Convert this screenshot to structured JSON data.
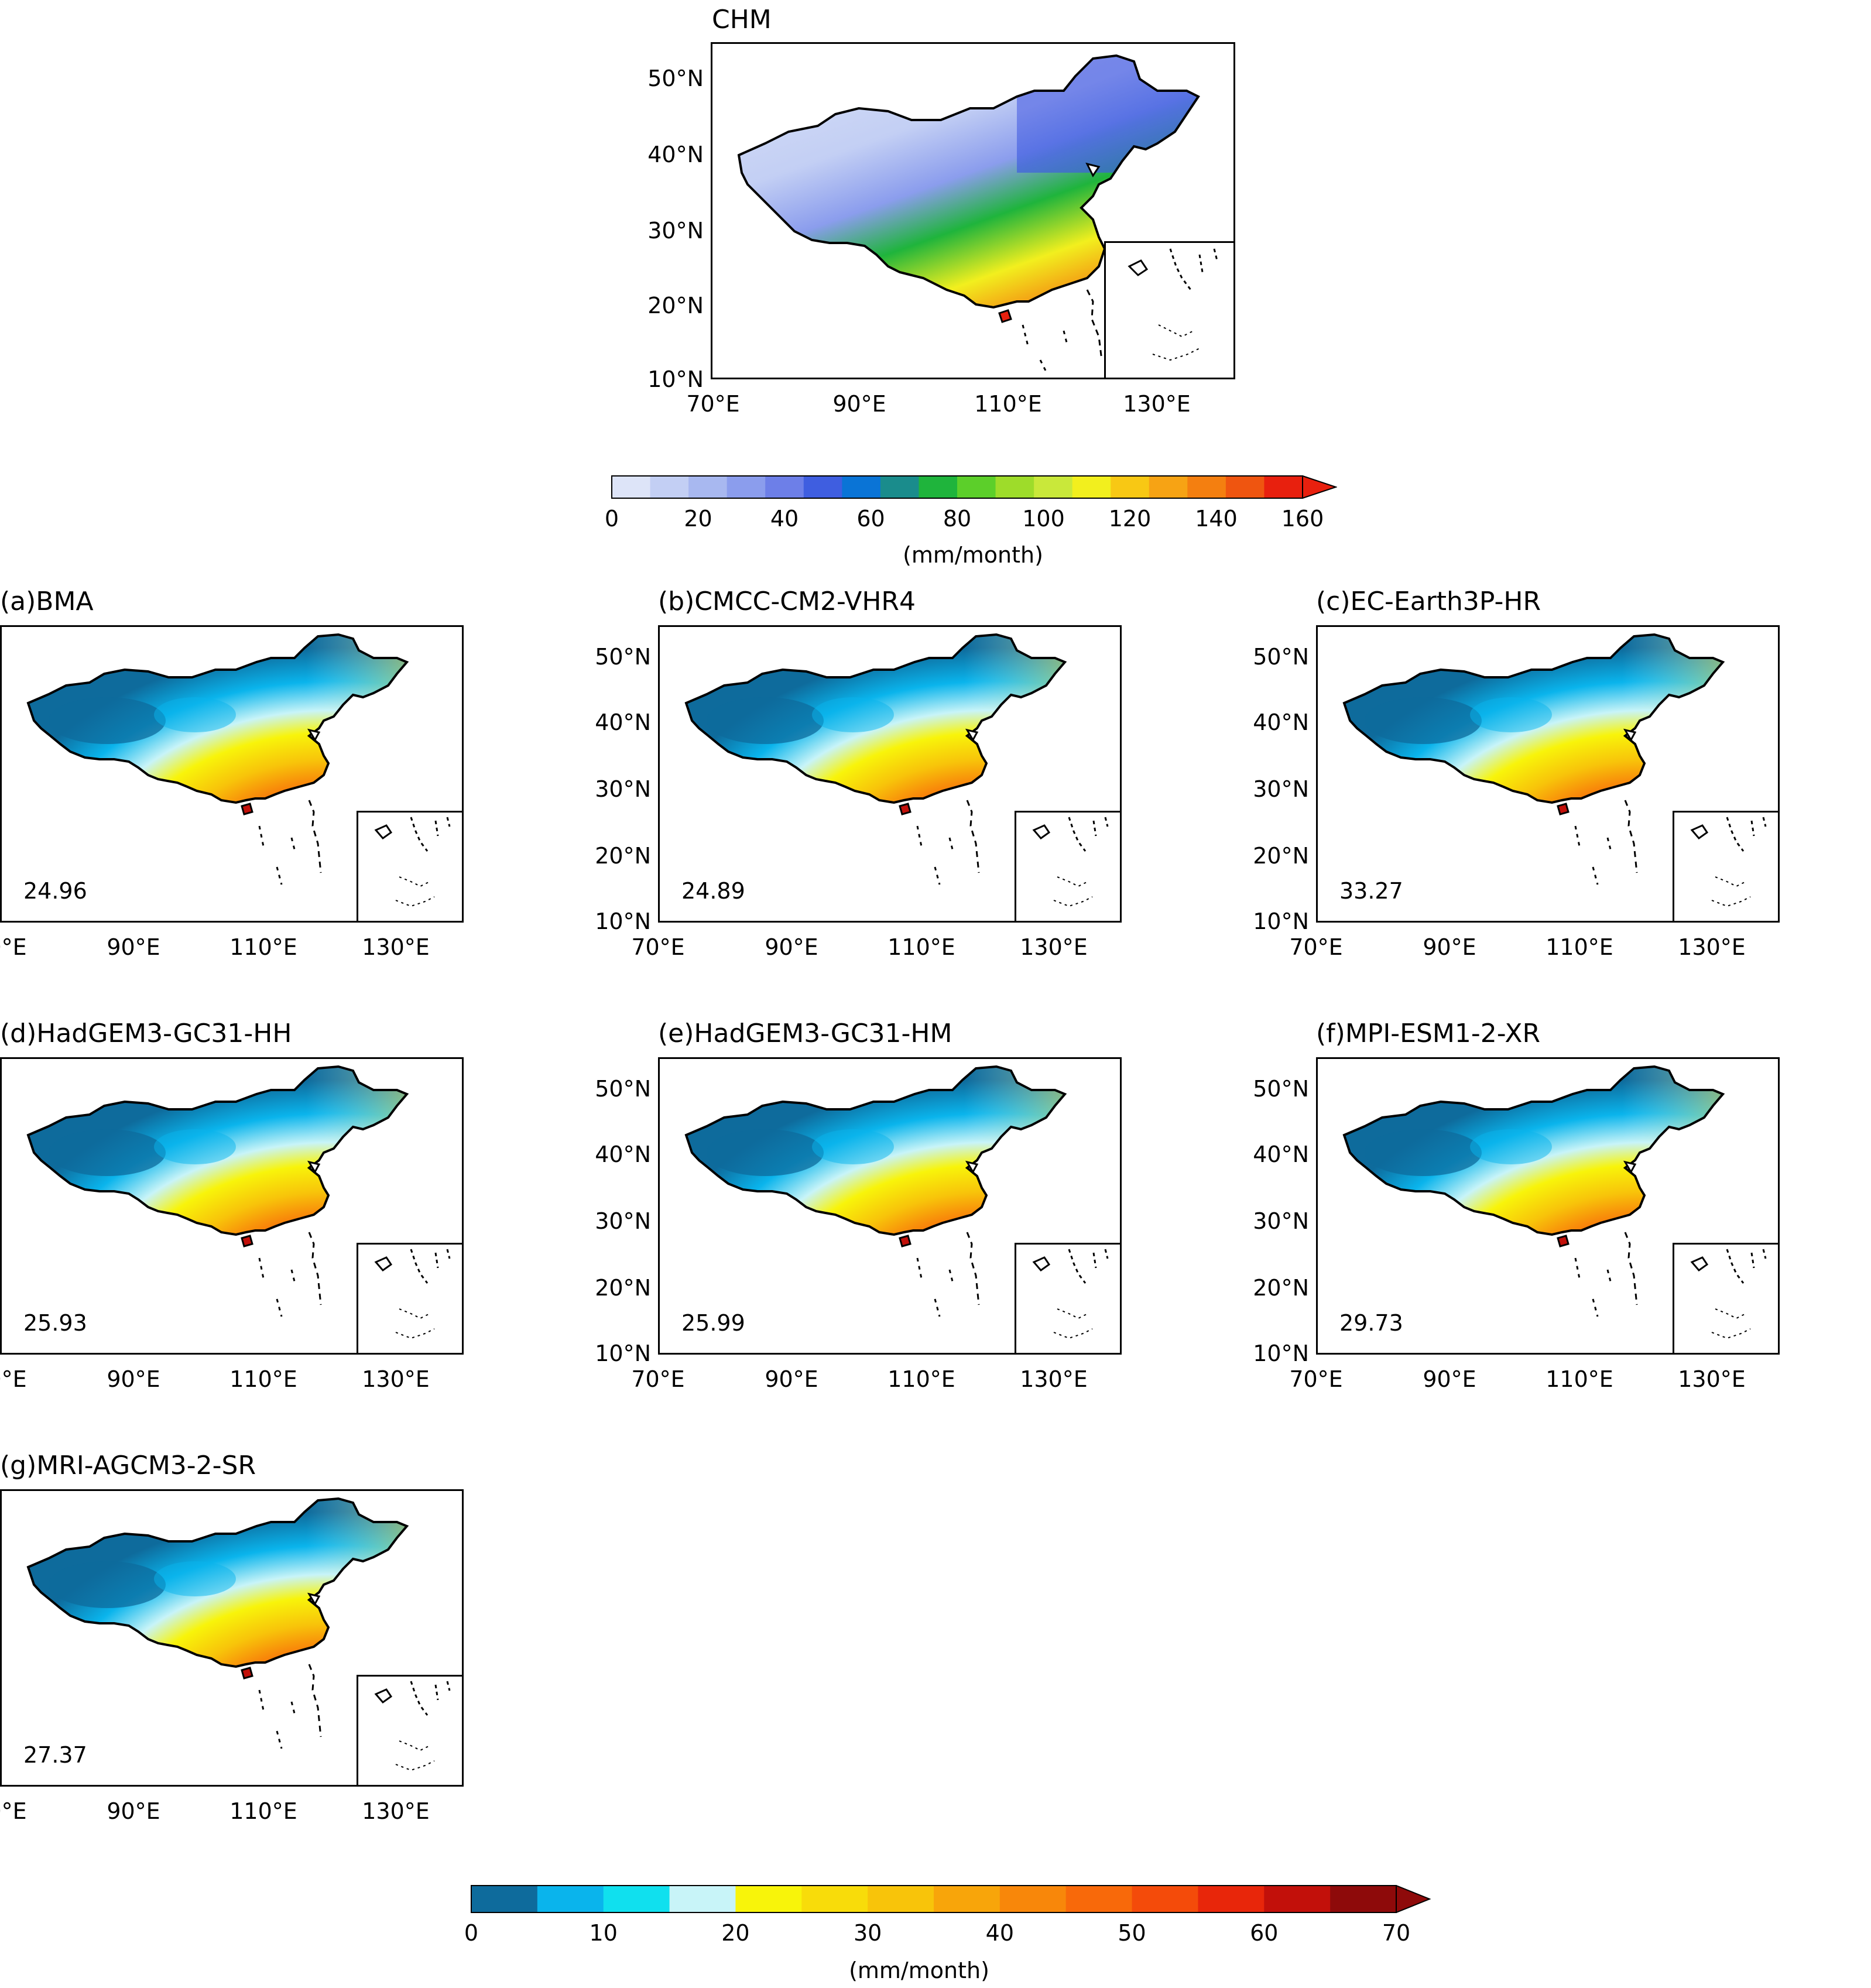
{
  "top_panel": {
    "title": "CHM",
    "lat_labels": [
      "50°N",
      "40°N",
      "30°N",
      "20°N",
      "10°N"
    ],
    "lon_labels": [
      "70°E",
      "90°E",
      "110°E",
      "130°E"
    ]
  },
  "top_colorbar": {
    "ticks": [
      "0",
      "20",
      "40",
      "60",
      "80",
      "100",
      "120",
      "140",
      "160"
    ],
    "unit": "(mm/month)",
    "colors": [
      "#dde4f8",
      "#c3cff4",
      "#a8b8f0",
      "#8b9ded",
      "#6d7fe8",
      "#3f5ee0",
      "#0a74d6",
      "#1a8c8c",
      "#1fb43c",
      "#5ccf2a",
      "#9edc2a",
      "#c9e83a",
      "#f2ef1e",
      "#f8c814",
      "#f7a314",
      "#f47f10",
      "#ef5510",
      "#e8200e"
    ]
  },
  "bottom_colorbar": {
    "ticks": [
      "0",
      "10",
      "20",
      "30",
      "40",
      "50",
      "60",
      "70"
    ],
    "unit": "(mm/month)",
    "colors": [
      "#0e6b9c",
      "#0ab4ec",
      "#10e0ee",
      "#c8f4f8",
      "#f8f40a",
      "#f8dc0a",
      "#f8c40a",
      "#f8a50a",
      "#f8870a",
      "#f8690a",
      "#f44b0a",
      "#e8260a",
      "#c2100a",
      "#8e0a0a"
    ]
  },
  "panels": [
    {
      "title": "(a)BMA",
      "rmse": "24.96"
    },
    {
      "title": "(b)CMCC-CM2-VHR4",
      "rmse": "24.89"
    },
    {
      "title": "(c)EC-Earth3P-HR",
      "rmse": "33.27"
    },
    {
      "title": "(d)HadGEM3-GC31-HH",
      "rmse": "25.93"
    },
    {
      "title": "(e)HadGEM3-GC31-HM",
      "rmse": "25.99"
    },
    {
      "title": "(f)MPI-ESM1-2-XR",
      "rmse": "29.73"
    },
    {
      "title": "(g)MRI-AGCM3-2-SR",
      "rmse": "27.37"
    }
  ],
  "lat_labels": [
    "50°N",
    "40°N",
    "30°N",
    "20°N",
    "10°N"
  ],
  "lon_labels": [
    "70°E",
    "90°E",
    "110°E",
    "130°E"
  ]
}
